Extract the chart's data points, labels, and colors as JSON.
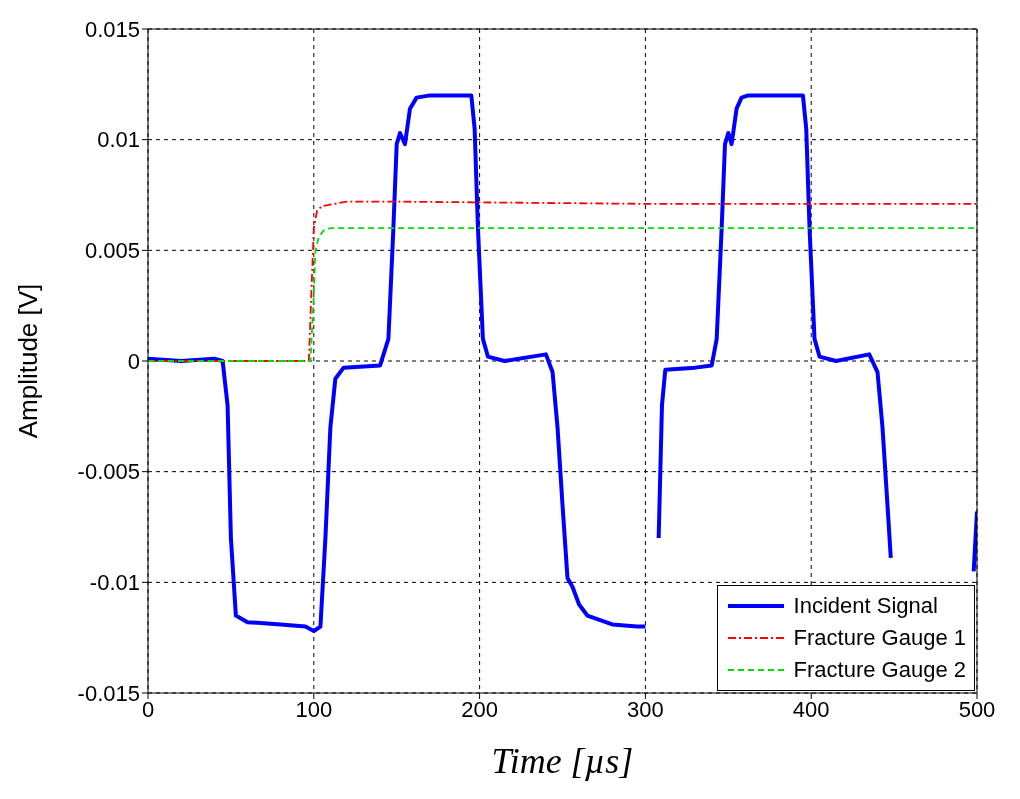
{
  "chart_data": {
    "type": "line",
    "xlabel": "Time [µs]",
    "ylabel": "Amplitude [V]",
    "xlim": [
      0,
      500
    ],
    "xticks": [
      0,
      100,
      200,
      300,
      400,
      500
    ],
    "ylim": [
      -0.015,
      0.015
    ],
    "yticks": [
      -0.015,
      -0.01,
      -0.005,
      0,
      0.005,
      0.01,
      0.015
    ],
    "grid": true,
    "legend": "bottom right",
    "marker": "none",
    "series": [
      {
        "name": "Incident Signal",
        "color": "#0000ff",
        "line_style": "solid",
        "x": [
          0,
          20,
          40,
          45,
          48,
          50,
          53,
          60,
          80,
          95,
          100,
          104,
          107,
          110,
          113,
          118,
          140,
          145,
          148,
          150,
          152,
          155,
          158,
          162,
          170,
          195,
          197,
          199,
          202,
          205,
          215,
          240,
          244,
          247,
          250,
          253,
          256,
          260,
          265,
          280,
          295,
          300,
          306,
          308,
          310,
          312,
          330,
          340,
          343,
          346,
          348,
          350,
          352,
          355,
          358,
          362,
          370,
          395,
          397,
          399,
          402,
          405,
          415,
          435,
          440,
          443,
          446,
          448,
          450,
          490,
          495,
          498,
          500
        ],
        "values": [
          0.0001,
          0,
          0.0001,
          0,
          -0.002,
          -0.008,
          -0.0115,
          -0.0118,
          -0.0119,
          -0.012,
          -0.0122,
          -0.012,
          -0.008,
          -0.003,
          -0.0008,
          -0.0003,
          -0.0002,
          0.001,
          0.006,
          0.0098,
          0.0103,
          0.0098,
          0.0114,
          0.0119,
          0.012,
          0.012,
          0.0105,
          0.006,
          0.001,
          0.0002,
          0,
          0.0003,
          -0.0005,
          -0.003,
          -0.0065,
          -0.0098,
          -0.0102,
          -0.011,
          -0.0115,
          -0.0119,
          -0.012,
          -0.012,
          null,
          -0.008,
          -0.002,
          -0.0004,
          -0.0003,
          -0.0002,
          0.001,
          0.006,
          0.0098,
          0.0103,
          0.0098,
          0.0114,
          0.0119,
          0.012,
          0.012,
          0.012,
          0.0105,
          0.006,
          0.001,
          0.0002,
          0,
          0.0003,
          -0.0005,
          -0.003,
          -0.0065,
          -0.0089,
          null,
          null,
          null,
          -0.0095,
          -0.0068
        ]
      },
      {
        "name": "Fracture Gauge 1",
        "color": "#ff0000",
        "line_style": "dashdot",
        "x": [
          0,
          97,
          99,
          100,
          102,
          105,
          120,
          150,
          300,
          500
        ],
        "values": [
          0,
          0,
          0.004,
          0.006,
          0.0068,
          0.007,
          0.0072,
          0.0072,
          0.0071,
          0.0071
        ]
      },
      {
        "name": "Fracture Gauge 2",
        "color": "#00dd00",
        "line_style": "dashed",
        "x": [
          0,
          98,
          100,
          101,
          103,
          106,
          110,
          500
        ],
        "values": [
          0,
          0,
          0.003,
          0.005,
          0.0056,
          0.0059,
          0.006,
          0.006
        ]
      }
    ]
  }
}
